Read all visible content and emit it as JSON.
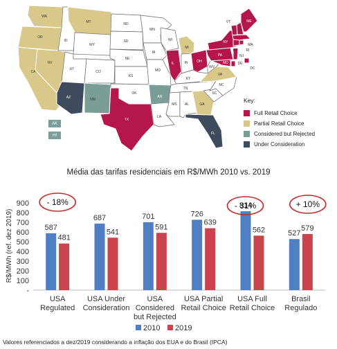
{
  "map": {
    "state_labels": {
      "WA": "WA",
      "OR": "OR",
      "CA": "CA",
      "NV": "NV",
      "ID": "ID",
      "MT": "MT",
      "WY": "WY",
      "UT": "UT",
      "AZ": "AZ",
      "CO": "CO",
      "NM": "NM",
      "ND": "ND",
      "SD": "SD",
      "NE": "NE",
      "KS": "KS",
      "OK": "OK",
      "TX": "TX",
      "MN": "MN",
      "IA": "IA",
      "MO": "MO",
      "AR": "AR",
      "LA": "LA",
      "WI": "WI",
      "IL": "IL",
      "MI": "MI",
      "IN": "IN",
      "OH": "OH",
      "KY": "KY",
      "TN": "TN",
      "MS": "MS",
      "AL": "AL",
      "GA": "GA",
      "FL": "FL",
      "SC": "SC",
      "NC": "NC",
      "VA": "VA",
      "WV": "WV",
      "PA": "PA",
      "NY": "NY",
      "ME": "ME",
      "NH": "NH",
      "VT": "VT",
      "MA": "MA",
      "CT": "CT",
      "RI": "RI",
      "NJ": "NJ",
      "DE": "DE",
      "MD": "MD",
      "DC": "DC",
      "AK": "AK",
      "HI": "HI"
    },
    "key": {
      "title": "Key:",
      "items": [
        {
          "label": "Full Retail Choice",
          "color": "#b4164b"
        },
        {
          "label": "Partial Retail Choice",
          "color": "#d8c98a"
        },
        {
          "label": "Considered but Rejected",
          "color": "#7a9e97"
        },
        {
          "label": "Under Consideration",
          "color": "#3d4b5c"
        }
      ]
    }
  },
  "chart_data": {
    "type": "bar",
    "title": "Média das tarifas residenciais em R$/MWh 2010 vs. 2019",
    "ylabel": "R$/MWh (ref. dez 2019)",
    "xlabel": "",
    "ylim": [
      0,
      900
    ],
    "yticks": [
      "-",
      "100",
      "200",
      "300",
      "400",
      "500",
      "600",
      "700",
      "800",
      "900"
    ],
    "categories": [
      [
        "USA",
        "Regulated"
      ],
      [
        "USA Under",
        "Consideration"
      ],
      [
        "USA",
        "Considered",
        "but Rejected"
      ],
      [
        "USA Partial",
        "Retail Choice"
      ],
      [
        "USA Full",
        "Retail Choice"
      ],
      [
        "Brasil",
        "Regulado"
      ]
    ],
    "series": [
      {
        "name": "2010",
        "color": "#4f7fc2",
        "values": [
          587,
          687,
          701,
          726,
          814,
          527
        ]
      },
      {
        "name": "2019",
        "color": "#c9444c",
        "values": [
          481,
          541,
          591,
          639,
          562,
          579
        ]
      }
    ],
    "annotations": [
      "- 18%",
      "- 31%",
      "+ 10%"
    ],
    "grid": false,
    "legend": "bottom"
  },
  "footnote": "Valores referenciados a dez/2019 considerando a inflação dos EUA e do Brasil (IPCA)"
}
